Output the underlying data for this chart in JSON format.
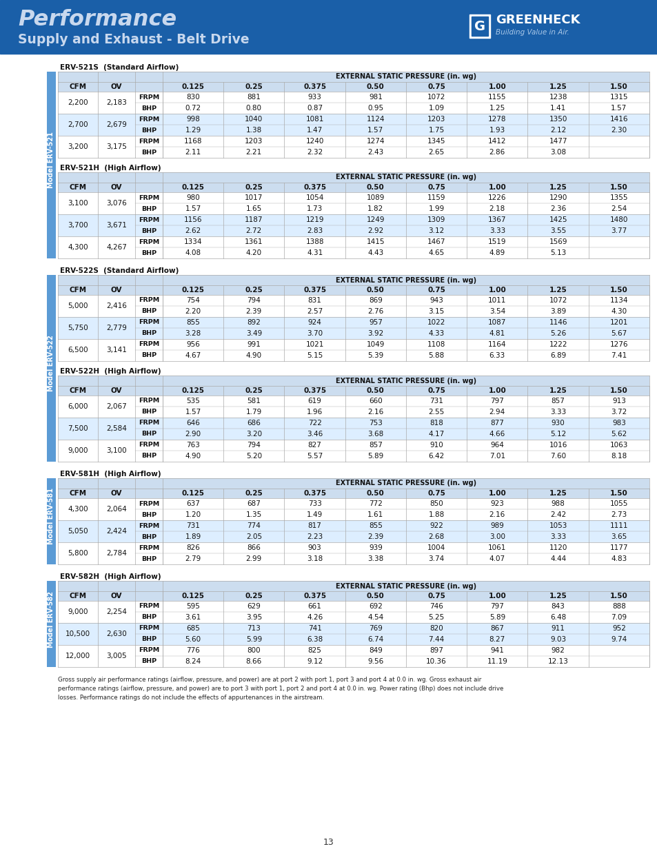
{
  "header_bg": "#1a5fa8",
  "header_title1": "Performance",
  "header_title2": "Supply and Exhaust - Belt Drive",
  "page_bg": "#ffffff",
  "border_color": "#aaaaaa",
  "header_row_bg": "#ccddef",
  "alt_row_bg": "#ddeeff",
  "white_row_bg": "#ffffff",
  "section_label_bg": "#5b9bd5",
  "pressure_cols": [
    "0.125",
    "0.25",
    "0.375",
    "0.50",
    "0.75",
    "1.00",
    "1.25",
    "1.50"
  ],
  "tables": [
    {
      "model_label": "Model ERV-521",
      "sections": [
        {
          "title": "ERV-521S  (Standard Airflow)",
          "rows": [
            {
              "cfm": "2,200",
              "ov": "2,183",
              "frpm": [
                "830",
                "881",
                "933",
                "981",
                "1072",
                "1155",
                "1238",
                "1315"
              ],
              "bhp": [
                "0.72",
                "0.80",
                "0.87",
                "0.95",
                "1.09",
                "1.25",
                "1.41",
                "1.57"
              ]
            },
            {
              "cfm": "2,700",
              "ov": "2,679",
              "frpm": [
                "998",
                "1040",
                "1081",
                "1124",
                "1203",
                "1278",
                "1350",
                "1416"
              ],
              "bhp": [
                "1.29",
                "1.38",
                "1.47",
                "1.57",
                "1.75",
                "1.93",
                "2.12",
                "2.30"
              ]
            },
            {
              "cfm": "3,200",
              "ov": "3,175",
              "frpm": [
                "1168",
                "1203",
                "1240",
                "1274",
                "1345",
                "1412",
                "1477",
                ""
              ],
              "bhp": [
                "2.11",
                "2.21",
                "2.32",
                "2.43",
                "2.65",
                "2.86",
                "3.08",
                ""
              ]
            }
          ]
        },
        {
          "title": "ERV-521H  (High Airflow)",
          "rows": [
            {
              "cfm": "3,100",
              "ov": "3,076",
              "frpm": [
                "980",
                "1017",
                "1054",
                "1089",
                "1159",
                "1226",
                "1290",
                "1355"
              ],
              "bhp": [
                "1.57",
                "1.65",
                "1.73",
                "1.82",
                "1.99",
                "2.18",
                "2.36",
                "2.54"
              ]
            },
            {
              "cfm": "3,700",
              "ov": "3,671",
              "frpm": [
                "1156",
                "1187",
                "1219",
                "1249",
                "1309",
                "1367",
                "1425",
                "1480"
              ],
              "bhp": [
                "2.62",
                "2.72",
                "2.83",
                "2.92",
                "3.12",
                "3.33",
                "3.55",
                "3.77"
              ]
            },
            {
              "cfm": "4,300",
              "ov": "4,267",
              "frpm": [
                "1334",
                "1361",
                "1388",
                "1415",
                "1467",
                "1519",
                "1569",
                ""
              ],
              "bhp": [
                "4.08",
                "4.20",
                "4.31",
                "4.43",
                "4.65",
                "4.89",
                "5.13",
                ""
              ]
            }
          ]
        }
      ]
    },
    {
      "model_label": "Model ERV-522",
      "sections": [
        {
          "title": "ERV-522S  (Standard Airflow)",
          "rows": [
            {
              "cfm": "5,000",
              "ov": "2,416",
              "frpm": [
                "754",
                "794",
                "831",
                "869",
                "943",
                "1011",
                "1072",
                "1134"
              ],
              "bhp": [
                "2.20",
                "2.39",
                "2.57",
                "2.76",
                "3.15",
                "3.54",
                "3.89",
                "4.30"
              ]
            },
            {
              "cfm": "5,750",
              "ov": "2,779",
              "frpm": [
                "855",
                "892",
                "924",
                "957",
                "1022",
                "1087",
                "1146",
                "1201"
              ],
              "bhp": [
                "3.28",
                "3.49",
                "3.70",
                "3.92",
                "4.33",
                "4.81",
                "5.26",
                "5.67"
              ]
            },
            {
              "cfm": "6,500",
              "ov": "3,141",
              "frpm": [
                "956",
                "991",
                "1021",
                "1049",
                "1108",
                "1164",
                "1222",
                "1276"
              ],
              "bhp": [
                "4.67",
                "4.90",
                "5.15",
                "5.39",
                "5.88",
                "6.33",
                "6.89",
                "7.41"
              ]
            }
          ]
        },
        {
          "title": "ERV-522H  (High Airflow)",
          "rows": [
            {
              "cfm": "6,000",
              "ov": "2,067",
              "frpm": [
                "535",
                "581",
                "619",
                "660",
                "731",
                "797",
                "857",
                "913"
              ],
              "bhp": [
                "1.57",
                "1.79",
                "1.96",
                "2.16",
                "2.55",
                "2.94",
                "3.33",
                "3.72"
              ]
            },
            {
              "cfm": "7,500",
              "ov": "2,584",
              "frpm": [
                "646",
                "686",
                "722",
                "753",
                "818",
                "877",
                "930",
                "983"
              ],
              "bhp": [
                "2.90",
                "3.20",
                "3.46",
                "3.68",
                "4.17",
                "4.66",
                "5.12",
                "5.62"
              ]
            },
            {
              "cfm": "9,000",
              "ov": "3,100",
              "frpm": [
                "763",
                "794",
                "827",
                "857",
                "910",
                "964",
                "1016",
                "1063"
              ],
              "bhp": [
                "4.90",
                "5.20",
                "5.57",
                "5.89",
                "6.42",
                "7.01",
                "7.60",
                "8.18"
              ]
            }
          ]
        }
      ]
    },
    {
      "model_label": "Model ERV-581",
      "sections": [
        {
          "title": "ERV-581H  (High Airflow)",
          "rows": [
            {
              "cfm": "4,300",
              "ov": "2,064",
              "frpm": [
                "637",
                "687",
                "733",
                "772",
                "850",
                "923",
                "988",
                "1055"
              ],
              "bhp": [
                "1.20",
                "1.35",
                "1.49",
                "1.61",
                "1.88",
                "2.16",
                "2.42",
                "2.73"
              ]
            },
            {
              "cfm": "5,050",
              "ov": "2,424",
              "frpm": [
                "731",
                "774",
                "817",
                "855",
                "922",
                "989",
                "1053",
                "1111"
              ],
              "bhp": [
                "1.89",
                "2.05",
                "2.23",
                "2.39",
                "2.68",
                "3.00",
                "3.33",
                "3.65"
              ]
            },
            {
              "cfm": "5,800",
              "ov": "2,784",
              "frpm": [
                "826",
                "866",
                "903",
                "939",
                "1004",
                "1061",
                "1120",
                "1177"
              ],
              "bhp": [
                "2.79",
                "2.99",
                "3.18",
                "3.38",
                "3.74",
                "4.07",
                "4.44",
                "4.83"
              ]
            }
          ]
        }
      ]
    },
    {
      "model_label": "Model ERV-582",
      "sections": [
        {
          "title": "ERV-582H  (High Airflow)",
          "rows": [
            {
              "cfm": "9,000",
              "ov": "2,254",
              "frpm": [
                "595",
                "629",
                "661",
                "692",
                "746",
                "797",
                "843",
                "888"
              ],
              "bhp": [
                "3.61",
                "3.95",
                "4.26",
                "4.54",
                "5.25",
                "5.89",
                "6.48",
                "7.09"
              ]
            },
            {
              "cfm": "10,500",
              "ov": "2,630",
              "frpm": [
                "685",
                "713",
                "741",
                "769",
                "820",
                "867",
                "911",
                "952"
              ],
              "bhp": [
                "5.60",
                "5.99",
                "6.38",
                "6.74",
                "7.44",
                "8.27",
                "9.03",
                "9.74"
              ]
            },
            {
              "cfm": "12,000",
              "ov": "3,005",
              "frpm": [
                "776",
                "800",
                "825",
                "849",
                "897",
                "941",
                "982",
                ""
              ],
              "bhp": [
                "8.24",
                "8.66",
                "9.12",
                "9.56",
                "10.36",
                "11.19",
                "12.13",
                ""
              ]
            }
          ]
        }
      ]
    }
  ],
  "footer_text": "Gross supply air performance ratings (airflow, pressure, and power) are at port 2 with port 1, port 3 and port 4 at 0.0 in. wg. Gross exhaust air\nperformance ratings (airflow, pressure, and power) are to port 3 with port 1, port 2 and port 4 at 0.0 in. wg. Power rating (Bhp) does not include drive\nlosses. Performance ratings do not include the effects of appurtenances in the airstream.",
  "page_number": "13"
}
